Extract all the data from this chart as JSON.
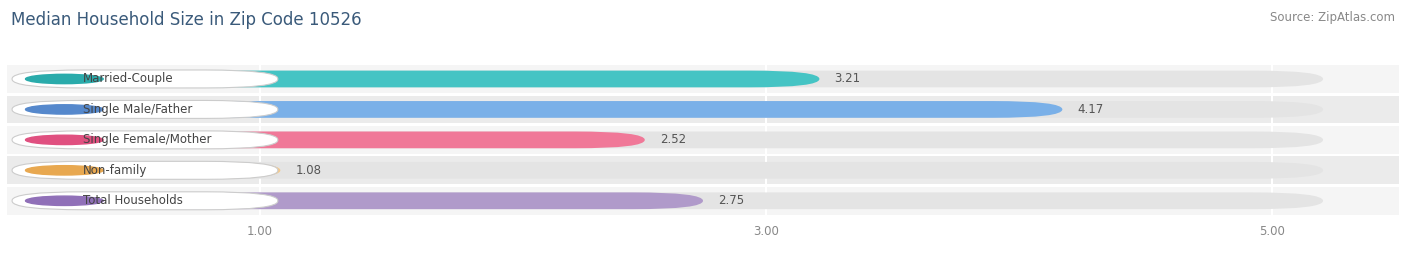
{
  "title": "Median Household Size in Zip Code 10526",
  "source": "Source: ZipAtlas.com",
  "categories": [
    "Married-Couple",
    "Single Male/Father",
    "Single Female/Mother",
    "Non-family",
    "Total Households"
  ],
  "values": [
    3.21,
    4.17,
    2.52,
    1.08,
    2.75
  ],
  "bar_colors": [
    "#45c4c4",
    "#7ab0e8",
    "#f07898",
    "#f5c98a",
    "#b09aca"
  ],
  "label_dot_colors": [
    "#2aabab",
    "#5588cc",
    "#e05080",
    "#e8a850",
    "#9070b8"
  ],
  "xlim": [
    0.0,
    5.5
  ],
  "xmin": 0.5,
  "xmax": 5.2,
  "xticks": [
    1.0,
    3.0,
    5.0
  ],
  "xtick_labels": [
    "1.00",
    "3.00",
    "5.00"
  ],
  "title_fontsize": 12,
  "source_fontsize": 8.5,
  "label_fontsize": 8.5,
  "value_fontsize": 8.5,
  "background_color": "#ffffff",
  "bar_bg_color": "#eeeeee",
  "grid_color": "#dddddd"
}
